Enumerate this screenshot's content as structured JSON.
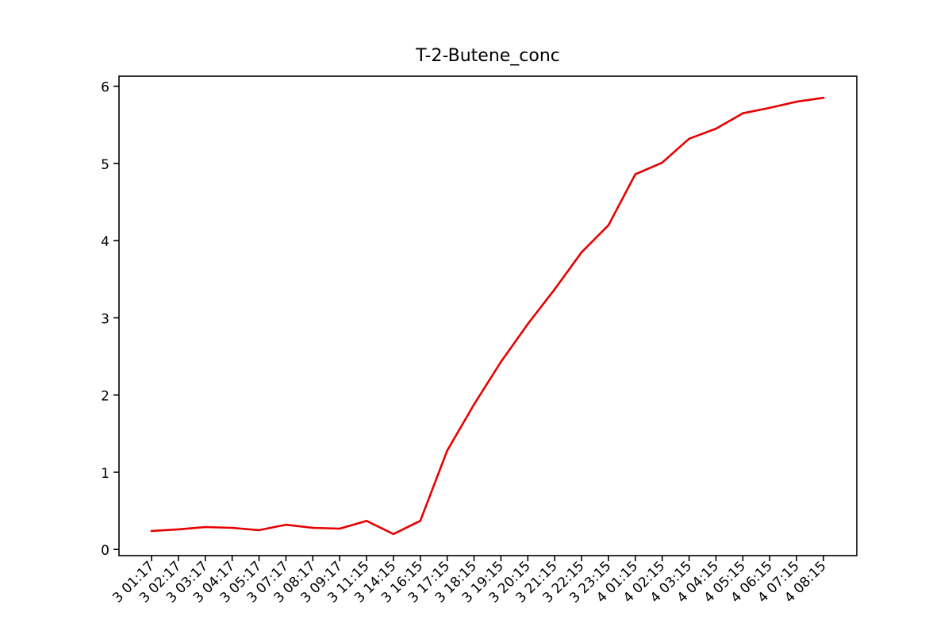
{
  "chart_data": {
    "type": "line",
    "title": "T-2-Butene_conc",
    "xlabel": "",
    "ylabel": "",
    "x_tick_labels": [
      "3 01:17",
      "3 02:17",
      "3 03:17",
      "3 04:17",
      "3 05:17",
      "3 07:17",
      "3 08:17",
      "3 09:17",
      "3 11:15",
      "3 14:15",
      "3 16:15",
      "3 17:15",
      "3 18:15",
      "3 19:15",
      "3 20:15",
      "3 21:15",
      "3 22:15",
      "3 23:15",
      "4 01:15",
      "4 02:15",
      "4 03:15",
      "4 04:15",
      "4 05:15",
      "4 06:15",
      "4 07:15",
      "4 08:15"
    ],
    "y_ticks": [
      0,
      1,
      2,
      3,
      4,
      5,
      6
    ],
    "ylim": [
      -0.08,
      6.13
    ],
    "series": [
      {
        "color": "#e60000",
        "values": [
          0.24,
          0.26,
          0.29,
          0.28,
          0.25,
          0.32,
          0.28,
          0.27,
          0.37,
          0.2,
          0.37,
          1.28,
          1.88,
          2.43,
          2.92,
          3.37,
          3.85,
          4.2,
          4.86,
          5.01,
          5.32,
          5.45,
          5.65,
          5.72,
          5.8,
          5.85
        ]
      }
    ],
    "grid": false,
    "legend": "none"
  }
}
